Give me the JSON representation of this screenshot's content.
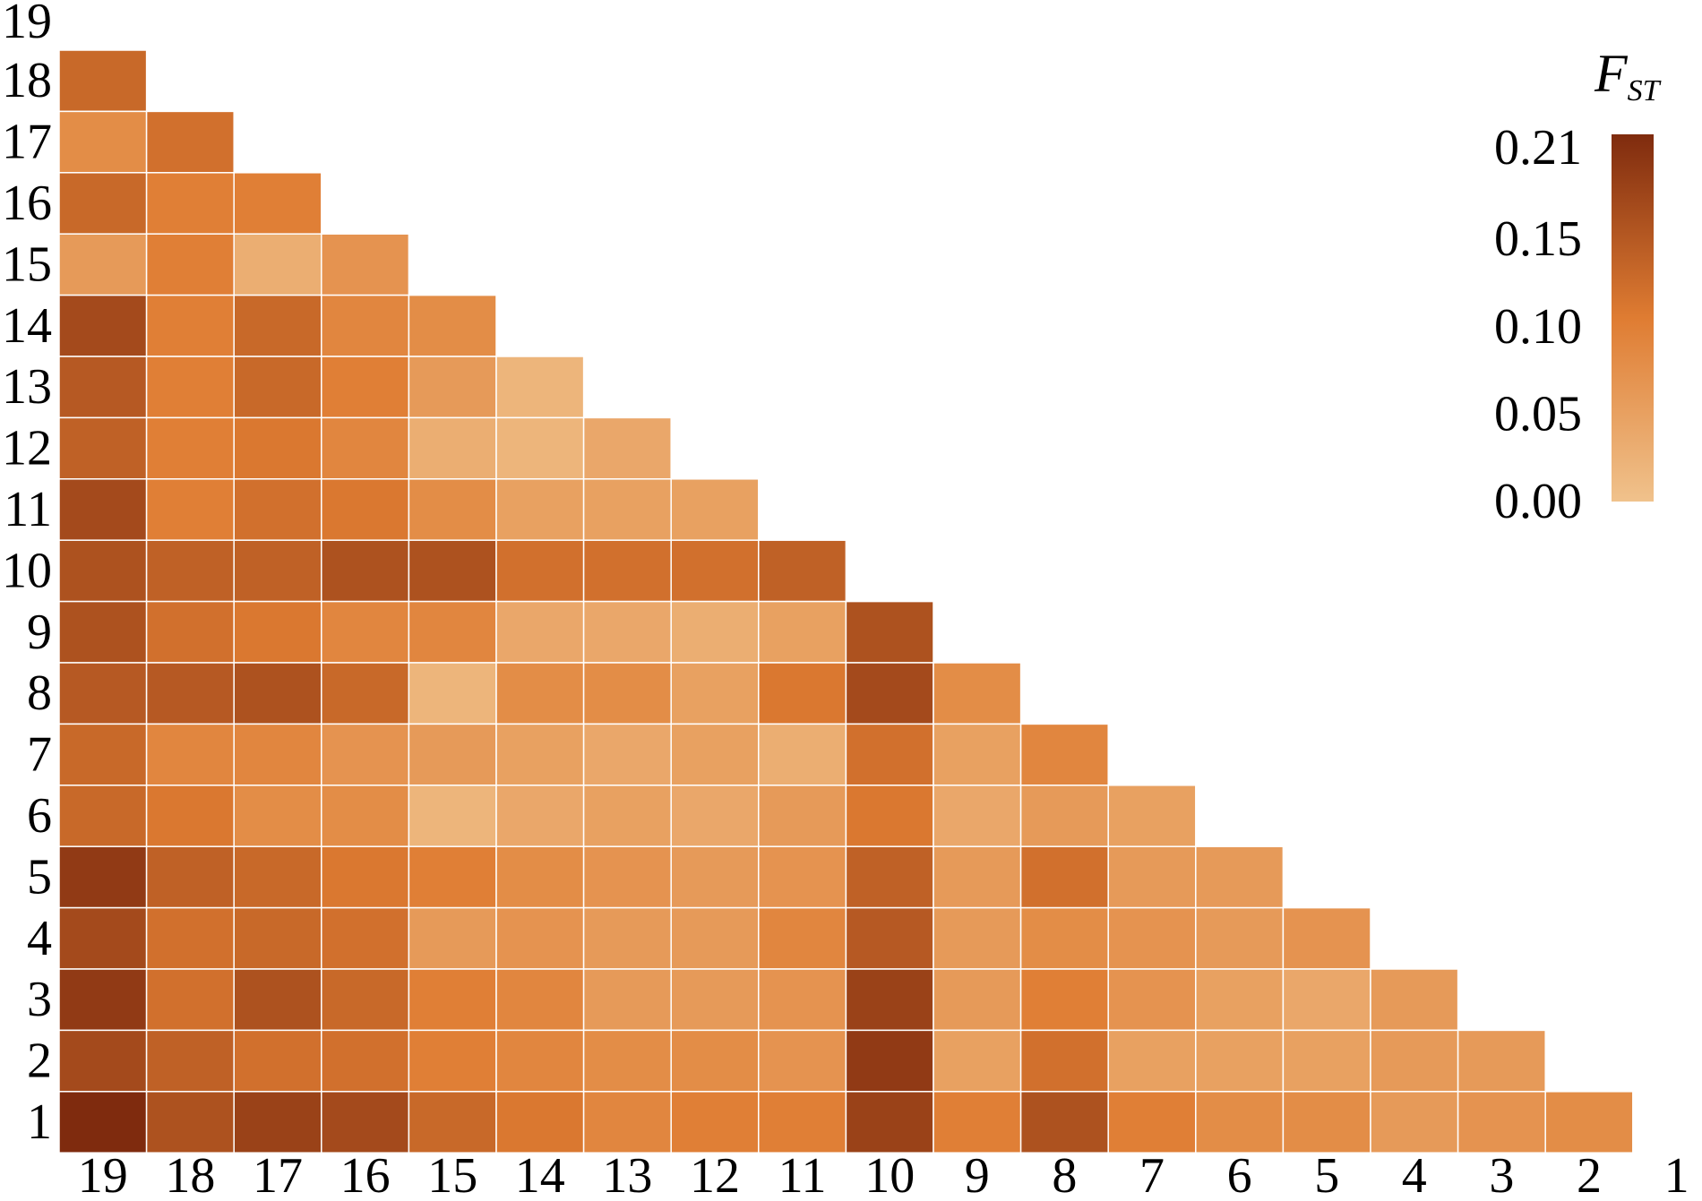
{
  "chart_data": {
    "type": "heatmap",
    "row_labels": [
      "19",
      "18",
      "17",
      "16",
      "15",
      "14",
      "13",
      "12",
      "11",
      "10",
      "9",
      "8",
      "7",
      "6",
      "5",
      "4",
      "3",
      "2",
      "1"
    ],
    "column_labels": [
      "19",
      "18",
      "17",
      "16",
      "15",
      "14",
      "13",
      "12",
      "11",
      "10",
      "9",
      "8",
      "7",
      "6",
      "5",
      "4",
      "3",
      "2",
      "1"
    ],
    "rows": [
      {
        "label": "18",
        "values": [
          0.13
        ]
      },
      {
        "label": "17",
        "values": [
          0.08,
          0.12
        ]
      },
      {
        "label": "16",
        "values": [
          0.13,
          0.1,
          0.1
        ]
      },
      {
        "label": "15",
        "values": [
          0.06,
          0.1,
          0.03,
          0.07
        ]
      },
      {
        "label": "14",
        "values": [
          0.17,
          0.1,
          0.13,
          0.09,
          0.08
        ]
      },
      {
        "label": "13",
        "values": [
          0.15,
          0.1,
          0.13,
          0.1,
          0.06,
          0.02
        ]
      },
      {
        "label": "12",
        "values": [
          0.14,
          0.1,
          0.11,
          0.09,
          0.03,
          0.02,
          0.04
        ]
      },
      {
        "label": "11",
        "values": [
          0.17,
          0.1,
          0.12,
          0.11,
          0.08,
          0.05,
          0.05,
          0.05
        ]
      },
      {
        "label": "10",
        "values": [
          0.16,
          0.14,
          0.14,
          0.16,
          0.16,
          0.12,
          0.12,
          0.12,
          0.14
        ]
      },
      {
        "label": "9",
        "values": [
          0.16,
          0.12,
          0.11,
          0.09,
          0.09,
          0.04,
          0.04,
          0.03,
          0.05,
          0.16
        ]
      },
      {
        "label": "8",
        "values": [
          0.15,
          0.15,
          0.16,
          0.13,
          0.02,
          0.08,
          0.08,
          0.05,
          0.11,
          0.17,
          0.08
        ]
      },
      {
        "label": "7",
        "values": [
          0.13,
          0.09,
          0.09,
          0.07,
          0.06,
          0.05,
          0.04,
          0.05,
          0.03,
          0.12,
          0.05,
          0.09
        ]
      },
      {
        "label": "6",
        "values": [
          0.13,
          0.11,
          0.08,
          0.08,
          0.02,
          0.04,
          0.05,
          0.04,
          0.06,
          0.11,
          0.04,
          0.06,
          0.05
        ]
      },
      {
        "label": "5",
        "values": [
          0.19,
          0.14,
          0.13,
          0.11,
          0.1,
          0.08,
          0.07,
          0.06,
          0.07,
          0.14,
          0.06,
          0.12,
          0.06,
          0.06
        ]
      },
      {
        "label": "4",
        "values": [
          0.17,
          0.12,
          0.13,
          0.12,
          0.06,
          0.07,
          0.06,
          0.06,
          0.09,
          0.15,
          0.06,
          0.08,
          0.07,
          0.06,
          0.07
        ]
      },
      {
        "label": "3",
        "values": [
          0.19,
          0.12,
          0.16,
          0.13,
          0.1,
          0.09,
          0.06,
          0.06,
          0.07,
          0.18,
          0.06,
          0.1,
          0.07,
          0.05,
          0.04,
          0.06
        ]
      },
      {
        "label": "2",
        "values": [
          0.17,
          0.14,
          0.12,
          0.12,
          0.1,
          0.09,
          0.08,
          0.08,
          0.07,
          0.19,
          0.05,
          0.12,
          0.05,
          0.05,
          0.05,
          0.06,
          0.06
        ]
      },
      {
        "label": "1",
        "values": [
          0.21,
          0.16,
          0.18,
          0.17,
          0.13,
          0.11,
          0.09,
          0.1,
          0.1,
          0.18,
          0.1,
          0.16,
          0.1,
          0.08,
          0.08,
          0.06,
          0.07,
          0.08
        ]
      }
    ],
    "colorbar": {
      "label": "F",
      "label_subscript": "ST",
      "ticks": [
        "0.21",
        "0.15",
        "0.10",
        "0.05",
        "0.00"
      ],
      "tick_values": [
        0.21,
        0.15,
        0.1,
        0.05,
        0.0
      ],
      "range": [
        0,
        0.21
      ]
    },
    "colors": {
      "low": "#f0c28c",
      "mid": "#e07a30",
      "high": "#7f2b0e"
    }
  }
}
